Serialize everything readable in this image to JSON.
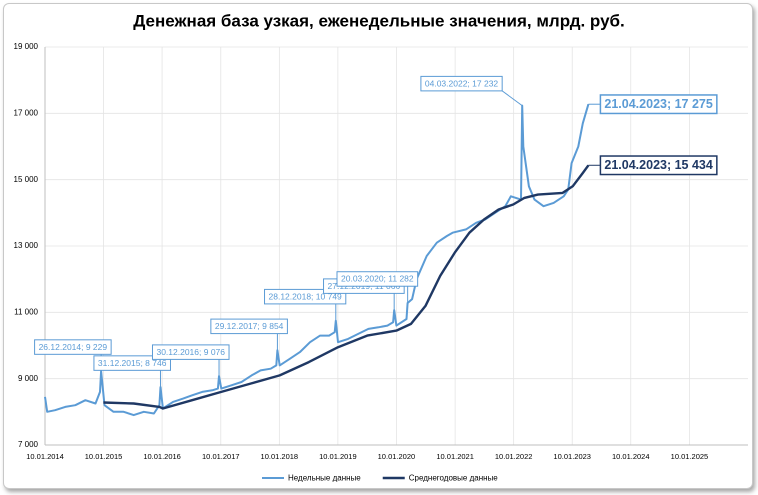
{
  "chart_data": {
    "type": "line",
    "title": "Денежная база узкая, еженедельные значения, млрд. руб.",
    "xlim": [
      "10.01.2014",
      "10.01.2026"
    ],
    "xticks": [
      "10.01.2014",
      "10.01.2015",
      "10.01.2016",
      "10.01.2017",
      "10.01.2018",
      "10.01.2019",
      "10.01.2020",
      "10.01.2021",
      "10.01.2022",
      "10.01.2023",
      "10.01.2024",
      "10.01.2025"
    ],
    "ylim": [
      7000,
      19000
    ],
    "yticks": [
      {
        "value": 7000,
        "label": "7 000"
      },
      {
        "value": 9000,
        "label": "9 000"
      },
      {
        "value": 11000,
        "label": "11 000"
      },
      {
        "value": 13000,
        "label": "13 000"
      },
      {
        "value": 15000,
        "label": "15 000"
      },
      {
        "value": 17000,
        "label": "17 000"
      },
      {
        "value": 19000,
        "label": "19 000"
      }
    ],
    "grid": true,
    "legend": "bottom",
    "series": [
      {
        "name": "Недельные данные",
        "color": "#5b9bd5",
        "x": [
          "10.01.2014",
          "24.01.2014",
          "14.03.2014",
          "16.05.2014",
          "18.07.2014",
          "19.09.2014",
          "21.11.2014",
          "19.12.2014",
          "26.12.2014",
          "16.01.2015",
          "13.03.2015",
          "15.05.2015",
          "17.07.2015",
          "18.09.2015",
          "20.11.2015",
          "24.12.2015",
          "31.12.2015",
          "15.01.2016",
          "18.03.2016",
          "20.05.2016",
          "15.07.2016",
          "16.09.2016",
          "18.11.2016",
          "23.12.2016",
          "30.12.2016",
          "13.01.2017",
          "17.03.2017",
          "19.05.2017",
          "21.07.2017",
          "15.09.2017",
          "17.11.2017",
          "22.12.2017",
          "29.12.2017",
          "12.01.2018",
          "16.03.2018",
          "18.05.2018",
          "20.07.2018",
          "21.09.2018",
          "16.11.2018",
          "21.12.2018",
          "28.12.2018",
          "11.01.2019",
          "15.03.2019",
          "17.05.2019",
          "19.07.2019",
          "20.09.2019",
          "15.11.2019",
          "20.12.2019",
          "27.12.2019",
          "10.01.2020",
          "13.03.2020",
          "20.03.2020",
          "17.04.2020",
          "15.05.2020",
          "17.07.2020",
          "18.09.2020",
          "20.11.2020",
          "25.12.2020",
          "19.03.2021",
          "21.05.2021",
          "16.07.2021",
          "17.09.2021",
          "19.11.2021",
          "24.12.2021",
          "25.02.2022",
          "04.03.2022",
          "11.03.2022",
          "15.04.2022",
          "20.05.2022",
          "15.07.2022",
          "16.09.2022",
          "18.11.2022",
          "16.12.2022",
          "06.01.2023",
          "17.02.2023",
          "17.03.2023",
          "21.04.2023"
        ],
        "values": [
          8450,
          8000,
          8050,
          8150,
          8200,
          8350,
          8250,
          8600,
          9229,
          8200,
          8000,
          8000,
          7900,
          8000,
          7950,
          8200,
          8746,
          8100,
          8300,
          8400,
          8500,
          8600,
          8650,
          8700,
          9076,
          8700,
          8800,
          8900,
          9100,
          9250,
          9300,
          9400,
          9854,
          9400,
          9600,
          9800,
          10100,
          10300,
          10300,
          10400,
          10749,
          10100,
          10200,
          10350,
          10500,
          10550,
          10600,
          10700,
          11066,
          10600,
          10800,
          11282,
          11400,
          12000,
          12700,
          13100,
          13300,
          13400,
          13500,
          13700,
          13800,
          14000,
          14200,
          14500,
          14400,
          17232,
          16000,
          14800,
          14400,
          14200,
          14300,
          14500,
          14700,
          15500,
          16000,
          16700,
          17275
        ],
        "annotations": [
          {
            "label": "26.12.2014; 9 229",
            "x": "26.12.2014",
            "value": 9229
          },
          {
            "label": "31.12.2015; 8 746",
            "x": "31.12.2015",
            "value": 8746
          },
          {
            "label": "30.12.2016; 9 076",
            "x": "30.12.2016",
            "value": 9076
          },
          {
            "label": "29.12.2017; 9 854",
            "x": "29.12.2017",
            "value": 9854
          },
          {
            "label": "28.12.2018; 10 749",
            "x": "28.12.2018",
            "value": 10749
          },
          {
            "label": "27.12.2019; 11 066",
            "x": "27.12.2019",
            "value": 11066
          },
          {
            "label": "20.03.2020; 11 282",
            "x": "20.03.2020",
            "value": 11282
          },
          {
            "label": "04.03.2022; 17 232",
            "x": "04.03.2022",
            "value": 17232
          },
          {
            "label": "21.04.2023; 17 275",
            "x": "21.04.2023",
            "value": 17275
          }
        ]
      },
      {
        "name": "Среднегодовые данные",
        "color": "#1f3864",
        "x": [
          "09.01.2015",
          "17.07.2015",
          "25.12.2015",
          "15.01.2016",
          "15.07.2016",
          "13.01.2017",
          "14.07.2017",
          "12.01.2018",
          "13.07.2018",
          "11.01.2019",
          "12.07.2019",
          "10.01.2020",
          "10.04.2020",
          "10.07.2020",
          "09.10.2020",
          "08.01.2021",
          "09.04.2021",
          "09.07.2021",
          "08.10.2021",
          "07.01.2022",
          "18.03.2022",
          "10.06.2022",
          "11.11.2022",
          "13.01.2023",
          "17.03.2023",
          "21.04.2023"
        ],
        "values": [
          8280,
          8250,
          8150,
          8100,
          8350,
          8600,
          8850,
          9100,
          9500,
          9950,
          10300,
          10450,
          10650,
          11200,
          12100,
          12800,
          13400,
          13800,
          14100,
          14250,
          14450,
          14550,
          14600,
          14800,
          15200,
          15434
        ],
        "annotations": [
          {
            "label": "21.04.2023; 15 434",
            "x": "21.04.2023",
            "value": 15434
          }
        ]
      }
    ]
  }
}
